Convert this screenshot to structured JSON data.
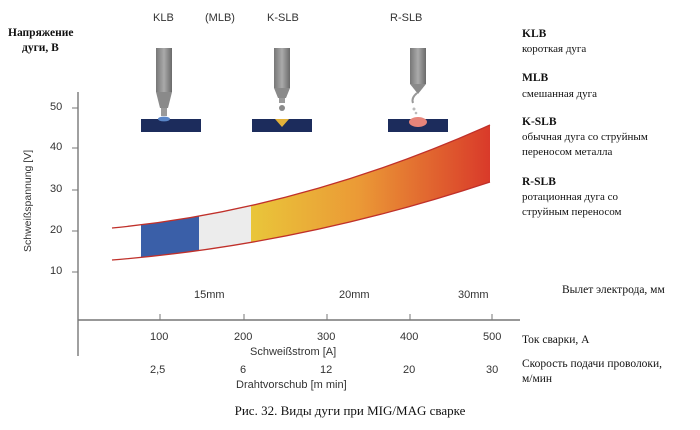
{
  "title_ru": [
    "Напряжение",
    "дуги, В"
  ],
  "ylabel_de": "Schweißspannung [V]",
  "ytick_labels": [
    "50",
    "40",
    "30",
    "20",
    "10"
  ],
  "top_labels": [
    "KLB",
    "(MLB)",
    "K-SLB",
    "R-SLB"
  ],
  "stickout": {
    "values": [
      "15mm",
      "20mm",
      "30mm"
    ],
    "label_ru": "Вылет электрода, мм"
  },
  "current": {
    "ticks": [
      "100",
      "200",
      "300",
      "400",
      "500"
    ],
    "label_de": "Schweißstrom [A]",
    "label_ru": "Ток сварки, А"
  },
  "wire": {
    "ticks": [
      "2,5",
      "6",
      "12",
      "20",
      "30"
    ],
    "label_de": "Drahtvorschub [m min]",
    "label_ru": [
      "Скорость подачи проволоки,",
      "м/мин"
    ]
  },
  "legend": [
    {
      "abbr": "KLB",
      "desc": [
        "короткая дуга"
      ]
    },
    {
      "abbr": "MLB",
      "desc": [
        "смешанная дуга"
      ]
    },
    {
      "abbr": "K-SLB",
      "desc": [
        "обычная дуга со струйным",
        "переносом металла"
      ]
    },
    {
      "abbr": "R-SLB",
      "desc": [
        "ротационная дуга со",
        "струйным переносом"
      ]
    }
  ],
  "caption": "Рис. 32. Виды дуги при MIG/MAG сварке",
  "colors": {
    "short_arc": "#3a5fa8",
    "mixed_arc": "#ececec",
    "spray_start": "#e9c63a",
    "spray_end": "#d93a2a",
    "band_outline": "#c0302a",
    "plate": "#1c2c5c"
  },
  "icons": [
    "torch-short-arc-icon",
    "torch-spray-arc-icon",
    "torch-rotating-arc-icon"
  ]
}
